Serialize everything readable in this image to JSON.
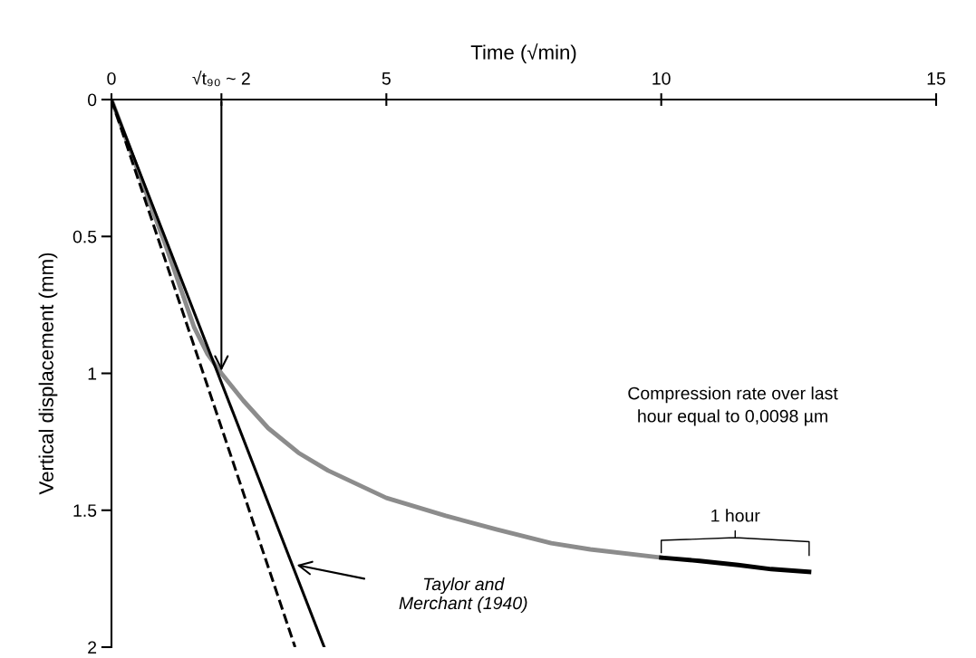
{
  "chart_data": {
    "type": "line",
    "xlabel": "Time (√min)",
    "ylabel": "Vertical displacement (mm)",
    "xlim": [
      0,
      15
    ],
    "xticks": [
      0,
      {
        "value": 2,
        "label": "√t₉₀ ~ 2"
      },
      5,
      10,
      15
    ],
    "ylim": [
      2,
      0
    ],
    "yticks": [
      0,
      0.5,
      1,
      1.5,
      2
    ],
    "grid": false,
    "line_style": "solid",
    "marker": "none",
    "series": [
      {
        "color": "#8c8c8c",
        "x": [
          0,
          0.5,
          1,
          1.5,
          1.75,
          2,
          2.4,
          2.85,
          3.4,
          3.94,
          5,
          6.08,
          7,
          8,
          8.71,
          10
        ],
        "values": [
          0,
          0.27,
          0.54,
          0.83,
          0.93,
          1.0,
          1.1,
          1.2,
          1.29,
          1.355,
          1.455,
          1.52,
          1.57,
          1.62,
          1.643,
          1.673
        ]
      },
      {
        "color": "#000000",
        "x": [
          10,
          10.7,
          11.4,
          12,
          12.69
        ],
        "values": [
          1.673,
          1.685,
          1.7,
          1.715,
          1.725
        ]
      },
      {
        "color": "#000000",
        "x": [
          0,
          3.87
        ],
        "values": [
          0,
          2.0
        ]
      },
      {
        "color": "#000000",
        "line_style": "dashed",
        "x": [
          0,
          3.34
        ],
        "values": [
          0,
          2.0
        ]
      }
    ],
    "annotations": [
      "Taylor and\nMerchant (1940)",
      "Compression rate over last\nhour equal to 0,0098 µm",
      "1 hour"
    ]
  }
}
